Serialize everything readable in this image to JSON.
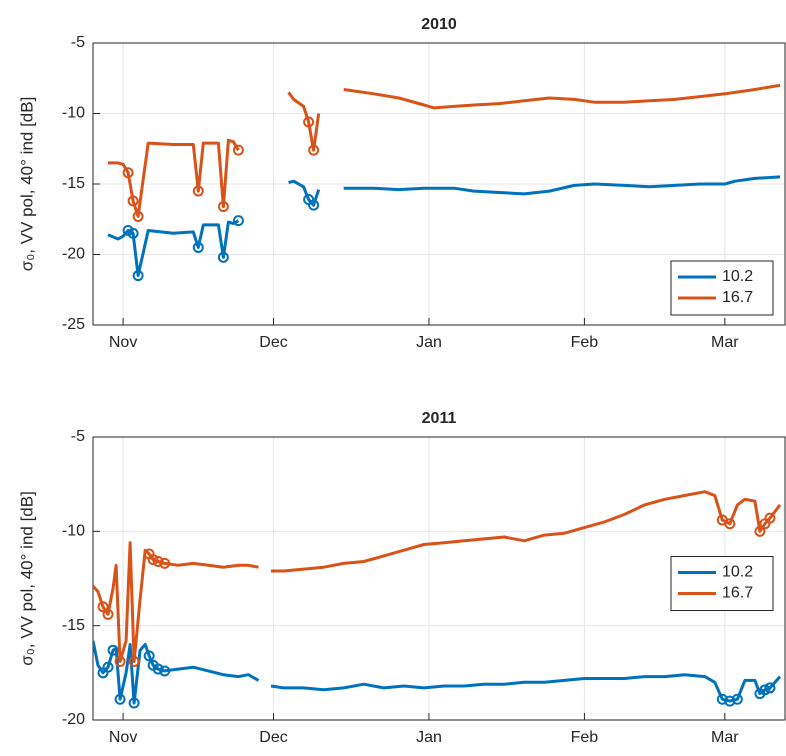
{
  "chart_data": [
    {
      "type": "line",
      "title": "2010",
      "ylabel": "σ₀, VV pol, 40° ind [dB]",
      "xlim": [
        -6,
        132
      ],
      "ylim": [
        -25,
        -5
      ],
      "yticks": [
        -25,
        -20,
        -15,
        -10,
        -5
      ],
      "xticks": [
        {
          "value": 0,
          "label": "Nov"
        },
        {
          "value": 30,
          "label": "Dec"
        },
        {
          "value": 61,
          "label": "Jan"
        },
        {
          "value": 92,
          "label": "Feb"
        },
        {
          "value": 120,
          "label": "Mar"
        }
      ],
      "grid": true,
      "legend": "lower right",
      "x": [
        -3,
        -1,
        0,
        1,
        2,
        3,
        5,
        10,
        14,
        15,
        16,
        19,
        20,
        21,
        22,
        23,
        28,
        33,
        34,
        36,
        37,
        38,
        39,
        42,
        44,
        50,
        55,
        60,
        62,
        66,
        70,
        75,
        80,
        85,
        90,
        94,
        100,
        105,
        110,
        115,
        120,
        122,
        126,
        131
      ],
      "series": [
        {
          "name": "10.2",
          "color": "#0072bd",
          "values": [
            -18.6,
            -18.9,
            -18.7,
            -18.3,
            -18.5,
            -21.5,
            -18.3,
            -18.5,
            -18.4,
            -19.5,
            -17.9,
            -17.9,
            -20.2,
            -17.7,
            -17.8,
            -17.6,
            null,
            -14.9,
            -14.8,
            -15.2,
            -16.1,
            -16.5,
            -15.4,
            null,
            -15.3,
            -15.3,
            -15.4,
            -15.3,
            -15.3,
            -15.3,
            -15.5,
            -15.6,
            -15.7,
            -15.5,
            -15.1,
            -15.0,
            -15.1,
            -15.2,
            -15.1,
            -15.0,
            -15.0,
            -14.8,
            -14.6,
            -14.5
          ],
          "marked_x": [
            1,
            2,
            3,
            15,
            20,
            23,
            37,
            38
          ]
        },
        {
          "name": "16.7",
          "color": "#d95319",
          "values": [
            -13.5,
            -13.5,
            -13.6,
            -14.2,
            -16.2,
            -17.3,
            -12.1,
            -12.2,
            -12.2,
            -15.5,
            -12.1,
            -12.1,
            -16.6,
            -11.9,
            -12.0,
            -12.6,
            null,
            -8.5,
            -9.0,
            -9.5,
            -10.6,
            -12.6,
            -10.0,
            null,
            -8.3,
            -8.6,
            -8.9,
            -9.4,
            -9.6,
            -9.5,
            -9.4,
            -9.3,
            -9.1,
            -8.9,
            -9.0,
            -9.2,
            -9.2,
            -9.1,
            -9.0,
            -8.8,
            -8.6,
            -8.5,
            -8.3,
            -8.0
          ],
          "marked_x": [
            1,
            2,
            3,
            15,
            20,
            23,
            37,
            38
          ]
        }
      ]
    },
    {
      "type": "line",
      "title": "2011",
      "ylabel": "σ₀, VV pol, 40° ind [dB]",
      "xlim": [
        -6,
        132
      ],
      "ylim": [
        -20,
        -5
      ],
      "yticks": [
        -20,
        -15,
        -10,
        -5
      ],
      "xticks": [
        {
          "value": 0,
          "label": "Nov"
        },
        {
          "value": 30,
          "label": "Dec"
        },
        {
          "value": 61,
          "label": "Jan"
        },
        {
          "value": 92,
          "label": "Feb"
        },
        {
          "value": 120,
          "label": "Mar"
        }
      ],
      "grid": true,
      "legend": "right",
      "x": [
        -6,
        -5,
        -4,
        -3,
        -2,
        -1.4,
        -0.6,
        0.6,
        1.4,
        2.2,
        3.4,
        4.4,
        5.2,
        6,
        7,
        8.3,
        11,
        14,
        17,
        20,
        23,
        25,
        27,
        28,
        29.5,
        32,
        36,
        40,
        44,
        48,
        52,
        56,
        60,
        64,
        68,
        72,
        76,
        80,
        84,
        88,
        92,
        96,
        100,
        104,
        108,
        112,
        116,
        118,
        119.5,
        121,
        122.5,
        124,
        126,
        127,
        128,
        129,
        131
      ],
      "series": [
        {
          "name": "10.2",
          "color": "#0072bd",
          "values": [
            -15.8,
            -17.1,
            -17.5,
            -17.2,
            -16.3,
            -16.2,
            -18.9,
            -17.5,
            -16.0,
            -19.1,
            -16.3,
            -16.0,
            -16.6,
            -17.1,
            -17.3,
            -17.4,
            -17.3,
            -17.2,
            -17.4,
            -17.6,
            -17.7,
            -17.6,
            -17.9,
            null,
            -18.2,
            -18.3,
            -18.3,
            -18.4,
            -18.3,
            -18.1,
            -18.3,
            -18.2,
            -18.3,
            -18.2,
            -18.2,
            -18.1,
            -18.1,
            -18.0,
            -18.0,
            -17.9,
            -17.8,
            -17.8,
            -17.8,
            -17.7,
            -17.7,
            -17.6,
            -17.7,
            -18.0,
            -18.9,
            -19.0,
            -18.9,
            -17.9,
            -17.9,
            -18.6,
            -18.4,
            -18.3,
            -17.7
          ],
          "marked_x": [
            -4,
            -3,
            -2,
            -0.6,
            2.2,
            5.2,
            6,
            7,
            8.3,
            119.5,
            121,
            122.5,
            127,
            128,
            129
          ]
        },
        {
          "name": "16.7",
          "color": "#d95319",
          "values": [
            -12.9,
            -13.2,
            -14.0,
            -14.4,
            -13.0,
            -11.8,
            -16.9,
            -15.8,
            -10.6,
            -16.9,
            -13.6,
            -11.0,
            -11.2,
            -11.5,
            -11.6,
            -11.7,
            -11.8,
            -11.7,
            -11.8,
            -11.9,
            -11.8,
            -11.8,
            -11.9,
            null,
            -12.1,
            -12.1,
            -12.0,
            -11.9,
            -11.7,
            -11.6,
            -11.3,
            -11.0,
            -10.7,
            -10.6,
            -10.5,
            -10.4,
            -10.3,
            -10.5,
            -10.2,
            -10.1,
            -9.8,
            -9.5,
            -9.1,
            -8.6,
            -8.3,
            -8.1,
            -7.9,
            -8.1,
            -9.4,
            -9.6,
            -8.6,
            -8.3,
            -8.4,
            -10.0,
            -9.6,
            -9.3,
            -8.6
          ],
          "marked_x": [
            -4,
            -3,
            -0.6,
            2.2,
            5.2,
            6,
            7,
            8.3,
            119.5,
            121,
            127,
            128,
            129
          ]
        }
      ]
    }
  ]
}
